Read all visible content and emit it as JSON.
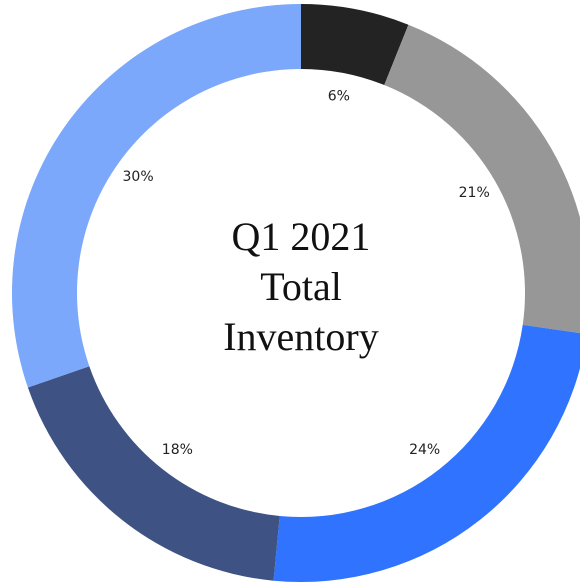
{
  "chart_data": {
    "type": "donut",
    "title": "Q1 2021 Total Inventory",
    "values": [
      6,
      21,
      24,
      18,
      30
    ],
    "value_labels": [
      "6%",
      "21%",
      "24%",
      "18%",
      "30%"
    ],
    "colors": [
      "#232323",
      "#979797",
      "#2f73fe",
      "#3e5384",
      "#7ba8fb"
    ]
  }
}
